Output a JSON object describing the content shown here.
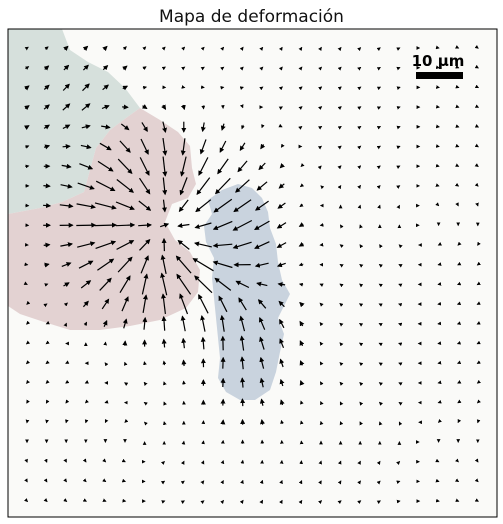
{
  "chart_data": {
    "type": "quiver",
    "title": "Mapa de deformación",
    "scale_bar": {
      "label": "10 µm",
      "length_um": 10
    },
    "grid": false,
    "legend": "none",
    "field_resolution": {
      "cols": 24,
      "rows": 24
    },
    "regions": [
      {
        "kind": "cell",
        "color": "#d6e0dc",
        "location": "top-left"
      },
      {
        "kind": "cell",
        "color": "#e3d2d2",
        "location": "left"
      },
      {
        "kind": "cell",
        "color": "#c9d3de",
        "location": "center"
      }
    ],
    "colors": {
      "background": "#fafaf8",
      "arrow": "#000000",
      "frame": "#000000"
    }
  }
}
